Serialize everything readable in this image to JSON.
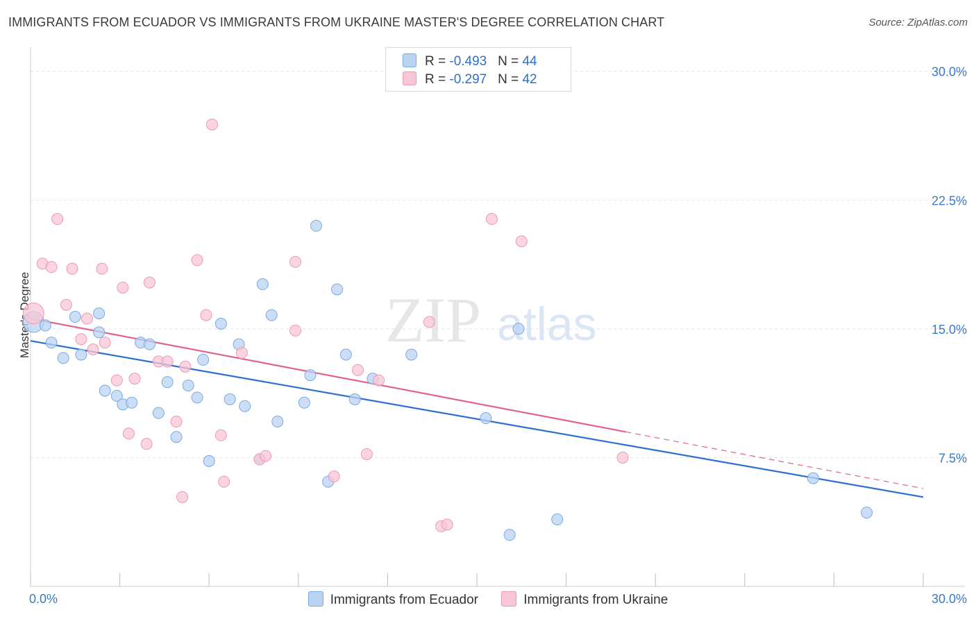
{
  "title": "IMMIGRANTS FROM ECUADOR VS IMMIGRANTS FROM UKRAINE MASTER'S DEGREE CORRELATION CHART",
  "source": "Source: ZipAtlas.com",
  "watermark": {
    "zip": "ZIP",
    "atlas": "atlas"
  },
  "legend": {
    "ecuador": {
      "r_label": "R = ",
      "r_value": "-0.493",
      "n_label": "N = ",
      "n_value": "44"
    },
    "ukraine": {
      "r_label": "R = ",
      "r_value": "-0.297",
      "n_label": "N = ",
      "n_value": "42"
    }
  },
  "colors": {
    "ecuador_fill": "#b9d3f3",
    "ecuador_stroke": "#7aaae0",
    "ecuador_line": "#2a6fd0",
    "ukraine_fill": "#f8c6d5",
    "ukraine_stroke": "#ec9ab4",
    "ukraine_line": "#e2628f",
    "tick_text": "#3a78c9",
    "grid": "#e0e0e0"
  },
  "chart_data": {
    "type": "scatter",
    "title": "IMMIGRANTS FROM ECUADOR VS IMMIGRANTS FROM UKRAINE MASTER'S DEGREE CORRELATION CHART",
    "xlabel": "",
    "ylabel": "Master's Degree",
    "xlim": [
      0,
      30
    ],
    "ylim": [
      0,
      31
    ],
    "x_tick_labels": [
      "0.0%",
      "30.0%"
    ],
    "y_ticks": [
      7.5,
      15.0,
      22.5,
      30.0
    ],
    "y_tick_labels": [
      "7.5%",
      "15.0%",
      "22.5%",
      "30.0%"
    ],
    "grid": true,
    "series": [
      {
        "name": "Immigrants from Ecuador",
        "points": [
          [
            0.1,
            15.4
          ],
          [
            0.5,
            15.2
          ],
          [
            0.7,
            14.2
          ],
          [
            1.1,
            13.3
          ],
          [
            1.5,
            15.7
          ],
          [
            1.7,
            13.5
          ],
          [
            2.3,
            15.9
          ],
          [
            2.3,
            14.8
          ],
          [
            2.5,
            11.4
          ],
          [
            2.9,
            11.1
          ],
          [
            3.1,
            10.6
          ],
          [
            3.4,
            10.7
          ],
          [
            3.7,
            14.2
          ],
          [
            4.0,
            14.1
          ],
          [
            4.3,
            10.1
          ],
          [
            4.6,
            11.9
          ],
          [
            4.9,
            8.7
          ],
          [
            5.3,
            11.7
          ],
          [
            5.6,
            11.0
          ],
          [
            5.8,
            13.2
          ],
          [
            6.0,
            7.3
          ],
          [
            6.4,
            15.3
          ],
          [
            6.7,
            10.9
          ],
          [
            7.0,
            14.1
          ],
          [
            7.2,
            10.5
          ],
          [
            7.7,
            7.4
          ],
          [
            7.8,
            17.6
          ],
          [
            8.1,
            15.8
          ],
          [
            8.3,
            9.6
          ],
          [
            9.2,
            10.7
          ],
          [
            9.4,
            12.3
          ],
          [
            9.6,
            21.0
          ],
          [
            10.0,
            6.1
          ],
          [
            10.3,
            17.3
          ],
          [
            10.6,
            13.5
          ],
          [
            10.9,
            10.9
          ],
          [
            11.5,
            12.1
          ],
          [
            12.8,
            13.5
          ],
          [
            15.3,
            9.8
          ],
          [
            16.1,
            3.0
          ],
          [
            16.4,
            15.0
          ],
          [
            17.7,
            3.9
          ],
          [
            26.3,
            6.3
          ],
          [
            28.1,
            4.3
          ]
        ]
      },
      {
        "name": "Immigrants from Ukraine",
        "points": [
          [
            0.1,
            15.9
          ],
          [
            0.4,
            18.8
          ],
          [
            0.7,
            18.6
          ],
          [
            0.9,
            21.4
          ],
          [
            1.2,
            16.4
          ],
          [
            1.4,
            18.5
          ],
          [
            1.7,
            14.4
          ],
          [
            1.9,
            15.6
          ],
          [
            2.1,
            13.8
          ],
          [
            2.4,
            18.5
          ],
          [
            2.5,
            14.2
          ],
          [
            2.9,
            12.0
          ],
          [
            3.1,
            17.4
          ],
          [
            3.3,
            8.9
          ],
          [
            3.5,
            12.1
          ],
          [
            3.9,
            8.3
          ],
          [
            4.0,
            17.7
          ],
          [
            4.3,
            13.1
          ],
          [
            4.6,
            13.1
          ],
          [
            4.9,
            9.6
          ],
          [
            5.1,
            5.2
          ],
          [
            5.2,
            12.8
          ],
          [
            5.6,
            19.0
          ],
          [
            5.9,
            15.8
          ],
          [
            6.1,
            26.9
          ],
          [
            6.4,
            8.8
          ],
          [
            6.5,
            6.1
          ],
          [
            7.1,
            13.6
          ],
          [
            7.7,
            7.4
          ],
          [
            7.9,
            7.6
          ],
          [
            8.9,
            18.9
          ],
          [
            8.9,
            14.9
          ],
          [
            10.2,
            6.4
          ],
          [
            11.0,
            12.6
          ],
          [
            11.3,
            7.7
          ],
          [
            11.7,
            12.0
          ],
          [
            13.4,
            15.4
          ],
          [
            13.8,
            3.5
          ],
          [
            14.0,
            3.6
          ],
          [
            15.5,
            21.4
          ],
          [
            16.5,
            20.1
          ],
          [
            19.9,
            7.5
          ]
        ]
      }
    ],
    "trendlines": [
      {
        "name": "Immigrants from Ecuador",
        "x": [
          0,
          30
        ],
        "y": [
          14.3,
          5.2
        ],
        "dashed_from": null
      },
      {
        "name": "Immigrants from Ukraine",
        "x": [
          0,
          30
        ],
        "y": [
          15.6,
          5.7
        ],
        "dashed_from": 20.0
      }
    ]
  },
  "bottom_legend": [
    "Immigrants from Ecuador",
    "Immigrants from Ukraine"
  ]
}
